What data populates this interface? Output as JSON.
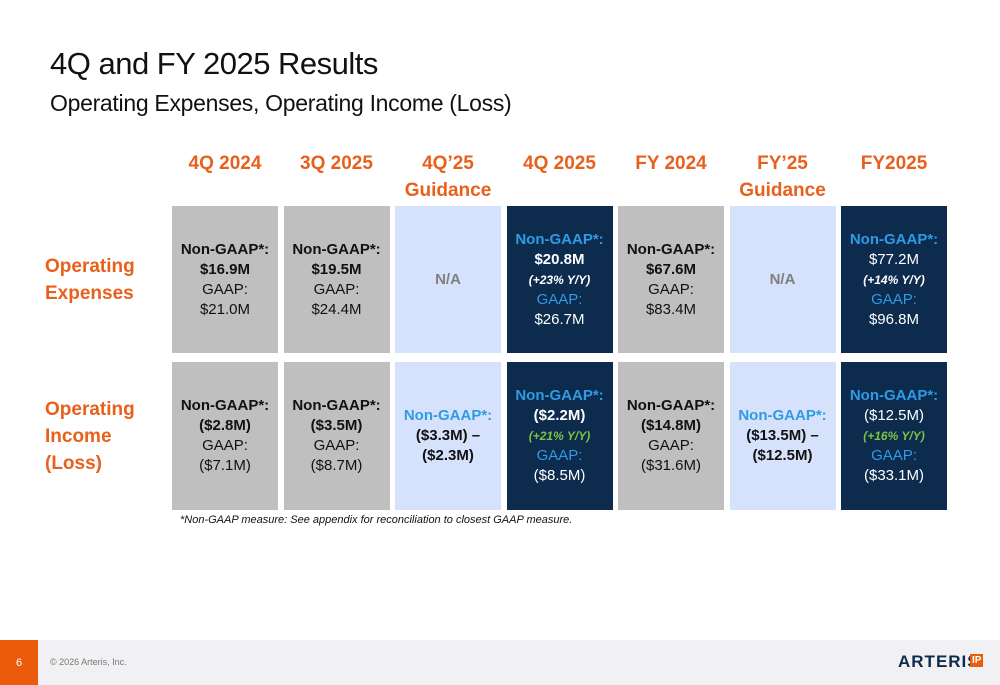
{
  "header": {
    "title": "4Q and FY 2025 Results",
    "subtitle": "Operating Expenses, Operating Income (Loss)"
  },
  "table": {
    "columns": [
      "4Q 2024",
      "3Q 2025",
      "4Q’25 Guidance",
      "4Q 2025",
      "FY 2024",
      "FY’25 Guidance",
      "FY2025"
    ],
    "rows": [
      {
        "label": "Operating Expenses",
        "cells": [
          [
            "Non-GAAP*:",
            "$16.9M",
            "GAAP:",
            "$21.0M"
          ],
          [
            "Non-GAAP*:",
            "$19.5M",
            "GAAP:",
            "$24.4M"
          ],
          [
            "N/A"
          ],
          [
            "Non-GAAP*:",
            "$20.8M",
            "(+23% Y/Y)",
            "GAAP:",
            "$26.7M"
          ],
          [
            "Non-GAAP*:",
            "$67.6M",
            "GAAP:",
            "$83.4M"
          ],
          [
            "N/A"
          ],
          [
            "Non-GAAP*:",
            "$77.2M",
            "(+14% Y/Y)",
            "GAAP:",
            "$96.8M"
          ]
        ]
      },
      {
        "label": "Operating Income (Loss)",
        "cells": [
          [
            "Non-GAAP*:",
            "($2.8M)",
            "GAAP:",
            "($7.1M)"
          ],
          [
            "Non-GAAP*:",
            "($3.5M)",
            "GAAP:",
            "($8.7M)"
          ],
          [
            "Non-GAAP*:",
            "($3.3M) –",
            "($2.3M)"
          ],
          [
            "Non-GAAP*:",
            "($2.2M)",
            "(+21% Y/Y)",
            "GAAP:",
            "($8.5M)"
          ],
          [
            "Non-GAAP*:",
            "($14.8M)",
            "GAAP:",
            "($31.6M)"
          ],
          [
            "Non-GAAP*:",
            "($13.5M) –",
            "($12.5M)"
          ],
          [
            "Non-GAAP*:",
            "($12.5M)",
            "(+16% Y/Y)",
            "GAAP:",
            "($33.1M)"
          ]
        ]
      }
    ]
  },
  "footnote": "*Non-GAAP measure: See appendix for reconciliation to closest GAAP measure.",
  "footer": {
    "page": "6",
    "copyright": "© 2026 Arteris, Inc.",
    "logo": "ARTERIS",
    "logo_badge": "IP"
  }
}
